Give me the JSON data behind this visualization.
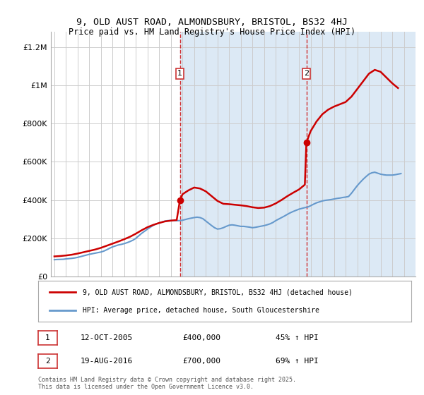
{
  "title_line1": "9, OLD AUST ROAD, ALMONDSBURY, BRISTOL, BS32 4HJ",
  "title_line2": "Price paid vs. HM Land Registry's House Price Index (HPI)",
  "ylabel_ticks": [
    "£0",
    "£200K",
    "£400K",
    "£600K",
    "£800K",
    "£1M",
    "£1.2M"
  ],
  "ytick_values": [
    0,
    200000,
    400000,
    600000,
    800000,
    1000000,
    1200000
  ],
  "ylim": [
    0,
    1280000
  ],
  "xlim_start": 1995,
  "xlim_end": 2026,
  "background_color": "#dce9f5",
  "plot_bg_color": "#ffffff",
  "red_line_color": "#cc0000",
  "blue_line_color": "#6699cc",
  "sale1_date": "12-OCT-2005",
  "sale1_price": 400000,
  "sale1_pct": "45%",
  "sale1_year": 2005.78,
  "sale2_date": "19-AUG-2016",
  "sale2_price": 700000,
  "sale2_pct": "69%",
  "sale2_year": 2016.63,
  "legend_label_red": "9, OLD AUST ROAD, ALMONDSBURY, BRISTOL, BS32 4HJ (detached house)",
  "legend_label_blue": "HPI: Average price, detached house, South Gloucestershire",
  "footer_text": "Contains HM Land Registry data © Crown copyright and database right 2025.\nThis data is licensed under the Open Government Licence v3.0.",
  "hpi_years": [
    1995.0,
    1995.25,
    1995.5,
    1995.75,
    1996.0,
    1996.25,
    1996.5,
    1996.75,
    1997.0,
    1997.25,
    1997.5,
    1997.75,
    1998.0,
    1998.25,
    1998.5,
    1998.75,
    1999.0,
    1999.25,
    1999.5,
    1999.75,
    2000.0,
    2000.25,
    2000.5,
    2000.75,
    2001.0,
    2001.25,
    2001.5,
    2001.75,
    2002.0,
    2002.25,
    2002.5,
    2002.75,
    2003.0,
    2003.25,
    2003.5,
    2003.75,
    2004.0,
    2004.25,
    2004.5,
    2004.75,
    2005.0,
    2005.25,
    2005.5,
    2005.75,
    2006.0,
    2006.25,
    2006.5,
    2006.75,
    2007.0,
    2007.25,
    2007.5,
    2007.75,
    2008.0,
    2008.25,
    2008.5,
    2008.75,
    2009.0,
    2009.25,
    2009.5,
    2009.75,
    2010.0,
    2010.25,
    2010.5,
    2010.75,
    2011.0,
    2011.25,
    2011.5,
    2011.75,
    2012.0,
    2012.25,
    2012.5,
    2012.75,
    2013.0,
    2013.25,
    2013.5,
    2013.75,
    2014.0,
    2014.25,
    2014.5,
    2014.75,
    2015.0,
    2015.25,
    2015.5,
    2015.75,
    2016.0,
    2016.25,
    2016.5,
    2016.75,
    2017.0,
    2017.25,
    2017.5,
    2017.75,
    2018.0,
    2018.25,
    2018.5,
    2018.75,
    2019.0,
    2019.25,
    2019.5,
    2019.75,
    2020.0,
    2020.25,
    2020.5,
    2020.75,
    2021.0,
    2021.25,
    2021.5,
    2021.75,
    2022.0,
    2022.25,
    2022.5,
    2022.75,
    2023.0,
    2023.25,
    2023.5,
    2023.75,
    2024.0,
    2024.25,
    2024.5,
    2024.75
  ],
  "hpi_values": [
    88000,
    89000,
    89500,
    90000,
    92000,
    93500,
    95000,
    97000,
    100000,
    104000,
    108000,
    112000,
    116000,
    119000,
    122000,
    125000,
    128000,
    133000,
    140000,
    148000,
    155000,
    160000,
    165000,
    168000,
    172000,
    177000,
    183000,
    190000,
    200000,
    213000,
    226000,
    237000,
    248000,
    258000,
    268000,
    275000,
    280000,
    285000,
    290000,
    292000,
    293000,
    293000,
    292000,
    292000,
    294000,
    298000,
    302000,
    305000,
    308000,
    310000,
    308000,
    302000,
    290000,
    278000,
    266000,
    255000,
    248000,
    250000,
    255000,
    262000,
    268000,
    270000,
    268000,
    265000,
    262000,
    262000,
    260000,
    258000,
    255000,
    257000,
    260000,
    263000,
    266000,
    270000,
    275000,
    282000,
    292000,
    300000,
    308000,
    316000,
    325000,
    333000,
    340000,
    346000,
    352000,
    356000,
    360000,
    363000,
    370000,
    378000,
    385000,
    390000,
    395000,
    398000,
    400000,
    402000,
    405000,
    408000,
    410000,
    413000,
    415000,
    418000,
    435000,
    455000,
    475000,
    492000,
    508000,
    522000,
    535000,
    542000,
    545000,
    540000,
    535000,
    532000,
    530000,
    530000,
    530000,
    532000,
    535000,
    538000
  ],
  "red_years": [
    1995.0,
    1995.5,
    1996.0,
    1996.5,
    1997.0,
    1997.5,
    1998.0,
    1998.5,
    1999.0,
    1999.5,
    2000.0,
    2000.5,
    2001.0,
    2001.5,
    2002.0,
    2002.5,
    2003.0,
    2003.5,
    2004.0,
    2004.5,
    2005.0,
    2005.5,
    2005.78,
    2006.0,
    2006.5,
    2007.0,
    2007.5,
    2008.0,
    2008.5,
    2009.0,
    2009.5,
    2010.0,
    2010.5,
    2011.0,
    2011.5,
    2012.0,
    2012.5,
    2013.0,
    2013.5,
    2014.0,
    2014.5,
    2015.0,
    2015.5,
    2016.0,
    2016.5,
    2016.63,
    2017.0,
    2017.5,
    2018.0,
    2018.5,
    2019.0,
    2019.5,
    2020.0,
    2020.5,
    2021.0,
    2021.5,
    2022.0,
    2022.5,
    2023.0,
    2023.5,
    2024.0,
    2024.5
  ],
  "red_values": [
    105000,
    107000,
    110000,
    114000,
    120000,
    127000,
    134000,
    141000,
    150000,
    161000,
    172000,
    183000,
    195000,
    208000,
    224000,
    242000,
    258000,
    270000,
    280000,
    288000,
    292000,
    295000,
    400000,
    430000,
    450000,
    465000,
    460000,
    445000,
    420000,
    395000,
    380000,
    378000,
    375000,
    372000,
    368000,
    362000,
    358000,
    360000,
    368000,
    382000,
    400000,
    420000,
    438000,
    455000,
    480000,
    700000,
    760000,
    810000,
    848000,
    872000,
    888000,
    900000,
    912000,
    940000,
    980000,
    1020000,
    1060000,
    1080000,
    1070000,
    1040000,
    1010000,
    985000
  ]
}
